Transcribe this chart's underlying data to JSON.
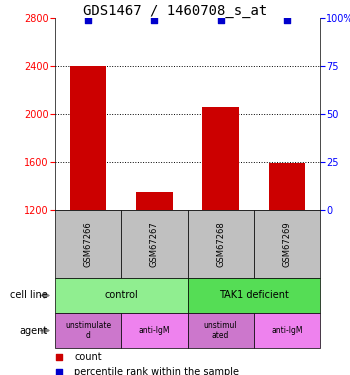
{
  "title": "GDS1467 / 1460708_s_at",
  "samples": [
    "GSM67266",
    "GSM67267",
    "GSM67268",
    "GSM67269"
  ],
  "counts": [
    2400,
    1350,
    2060,
    1590
  ],
  "percentile_ranks": [
    99,
    99,
    99,
    99
  ],
  "ylim_left": [
    1200,
    2800
  ],
  "ylim_right": [
    0,
    100
  ],
  "yticks_left": [
    1200,
    1600,
    2000,
    2400,
    2800
  ],
  "yticks_right": [
    0,
    25,
    50,
    75,
    100
  ],
  "ytick_right_labels": [
    "0",
    "25",
    "50",
    "75",
    "100%"
  ],
  "bar_color": "#cc0000",
  "dot_color": "#0000cc",
  "bar_width": 0.55,
  "cell_line_labels": [
    "control",
    "TAK1 deficient"
  ],
  "cell_line_spans": [
    [
      0,
      2
    ],
    [
      2,
      4
    ]
  ],
  "cell_line_colors": [
    "#90ee90",
    "#55dd55"
  ],
  "agent_labels": [
    "unstimulate\nd",
    "anti-IgM",
    "unstimul\nated",
    "anti-IgM"
  ],
  "agent_colors": [
    "#cc77cc",
    "#ee82ee",
    "#cc77cc",
    "#ee82ee"
  ],
  "sample_box_color": "#c0c0c0",
  "legend_count_color": "#cc0000",
  "legend_pct_color": "#0000cc",
  "title_fontsize": 10,
  "axis_fontsize": 7,
  "tick_fontsize": 7
}
